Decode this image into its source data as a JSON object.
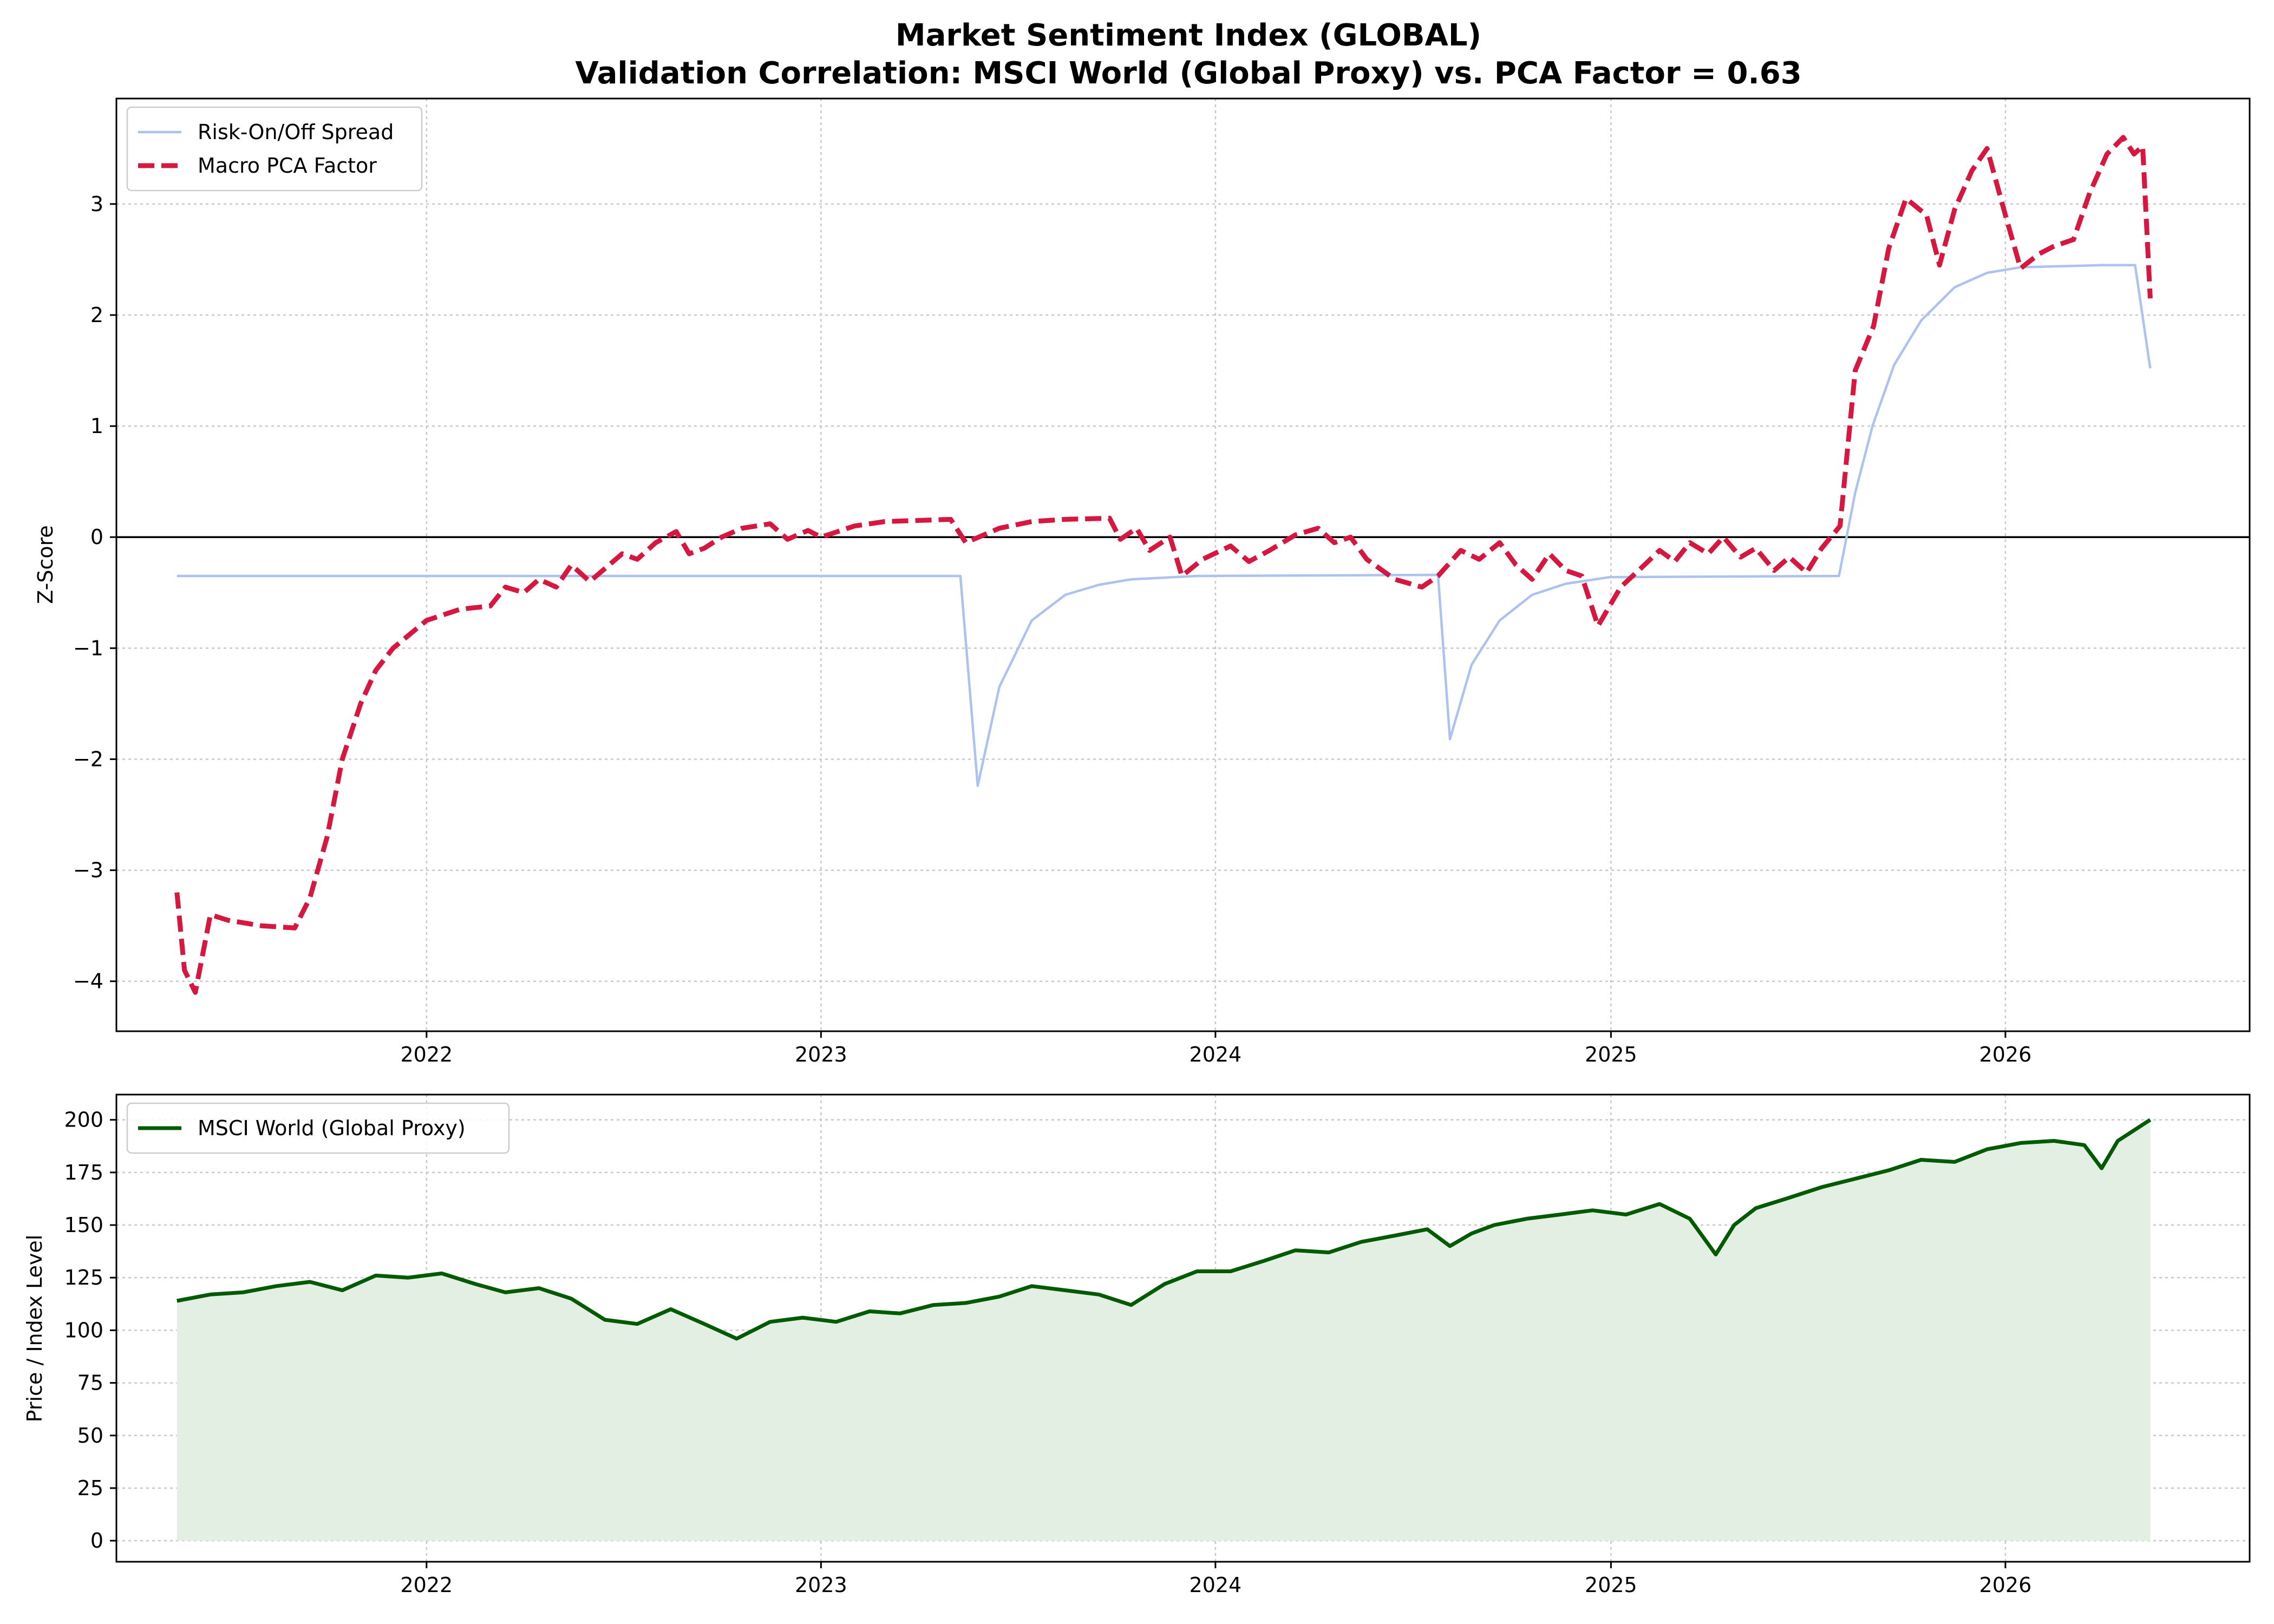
{
  "figure": {
    "title_line1": "Market Sentiment Index (GLOBAL)",
    "title_line2": "Validation Correlation: MSCI World (Global Proxy) vs. PCA Factor = 0.63"
  },
  "chart_data": [
    {
      "type": "line",
      "ylabel": "Z-Score",
      "xlabel": "",
      "x_axis": "date",
      "xlim": [
        "2021-03-20",
        "2026-08-15"
      ],
      "ylim": [
        -4.45,
        3.95
      ],
      "x_ticks": [
        "2022",
        "2023",
        "2024",
        "2025",
        "2026"
      ],
      "y_ticks": [
        -4,
        -3,
        -2,
        -1,
        0,
        1,
        2,
        3
      ],
      "y_tick_labels": [
        "−4",
        "−3",
        "−2",
        "−1",
        "0",
        "1",
        "2",
        "3"
      ],
      "zero_line": true,
      "grid": true,
      "legend": "upper left",
      "series": [
        {
          "name": "Risk-On/Off Spread",
          "color": "#aec2f0",
          "style": "solid",
          "points": [
            [
              "2021-05-15",
              -0.35
            ],
            [
              "2023-05-10",
              -0.35
            ],
            [
              "2023-05-26",
              -2.24
            ],
            [
              "2023-06-15",
              -1.35
            ],
            [
              "2023-07-15",
              -0.75
            ],
            [
              "2023-08-15",
              -0.52
            ],
            [
              "2023-09-15",
              -0.43
            ],
            [
              "2023-10-15",
              -0.38
            ],
            [
              "2023-12-15",
              -0.35
            ],
            [
              "2024-07-25",
              -0.34
            ],
            [
              "2024-08-05",
              -1.82
            ],
            [
              "2024-08-25",
              -1.15
            ],
            [
              "2024-09-20",
              -0.75
            ],
            [
              "2024-10-20",
              -0.52
            ],
            [
              "2024-11-20",
              -0.42
            ],
            [
              "2024-12-31",
              -0.36
            ],
            [
              "2025-07-31",
              -0.35
            ],
            [
              "2025-08-15",
              0.4
            ],
            [
              "2025-08-31",
              1.0
            ],
            [
              "2025-09-20",
              1.55
            ],
            [
              "2025-10-15",
              1.95
            ],
            [
              "2025-11-15",
              2.25
            ],
            [
              "2025-12-15",
              2.38
            ],
            [
              "2026-01-15",
              2.43
            ],
            [
              "2026-04-01",
              2.45
            ],
            [
              "2026-05-01",
              2.45
            ],
            [
              "2026-05-15",
              1.52
            ]
          ]
        },
        {
          "name": "Macro PCA Factor",
          "color": "#d6173f",
          "style": "dashed",
          "points": [
            [
              "2021-05-15",
              -3.2
            ],
            [
              "2021-05-22",
              -3.9
            ],
            [
              "2021-06-01",
              -4.1
            ],
            [
              "2021-06-15",
              -3.4
            ],
            [
              "2021-07-01",
              -3.45
            ],
            [
              "2021-08-01",
              -3.5
            ],
            [
              "2021-09-01",
              -3.52
            ],
            [
              "2021-09-15",
              -3.25
            ],
            [
              "2021-10-01",
              -2.7
            ],
            [
              "2021-10-15",
              -2.0
            ],
            [
              "2021-11-01",
              -1.5
            ],
            [
              "2021-11-15",
              -1.2
            ],
            [
              "2021-12-01",
              -1.0
            ],
            [
              "2022-01-01",
              -0.75
            ],
            [
              "2022-02-01",
              -0.65
            ],
            [
              "2022-03-01",
              -0.62
            ],
            [
              "2022-03-15",
              -0.45
            ],
            [
              "2022-04-01",
              -0.5
            ],
            [
              "2022-04-15",
              -0.38
            ],
            [
              "2022-05-01",
              -0.45
            ],
            [
              "2022-05-15",
              -0.25
            ],
            [
              "2022-06-01",
              -0.4
            ],
            [
              "2022-07-01",
              -0.15
            ],
            [
              "2022-07-15",
              -0.2
            ],
            [
              "2022-08-01",
              -0.05
            ],
            [
              "2022-08-20",
              0.05
            ],
            [
              "2022-09-01",
              -0.15
            ],
            [
              "2022-09-15",
              -0.1
            ],
            [
              "2022-10-01",
              0.0
            ],
            [
              "2022-10-20",
              0.08
            ],
            [
              "2022-11-15",
              0.12
            ],
            [
              "2022-12-01",
              -0.02
            ],
            [
              "2022-12-20",
              0.06
            ],
            [
              "2023-01-01",
              0.0
            ],
            [
              "2023-02-01",
              0.1
            ],
            [
              "2023-03-01",
              0.14
            ],
            [
              "2023-05-01",
              0.16
            ],
            [
              "2023-05-15",
              -0.05
            ],
            [
              "2023-06-15",
              0.08
            ],
            [
              "2023-07-15",
              0.14
            ],
            [
              "2023-08-15",
              0.16
            ],
            [
              "2023-09-25",
              0.17
            ],
            [
              "2023-10-05",
              -0.02
            ],
            [
              "2023-10-20",
              0.08
            ],
            [
              "2023-11-01",
              -0.12
            ],
            [
              "2023-11-20",
              0.0
            ],
            [
              "2023-12-01",
              -0.35
            ],
            [
              "2023-12-20",
              -0.2
            ],
            [
              "2024-01-15",
              -0.08
            ],
            [
              "2024-02-01",
              -0.22
            ],
            [
              "2024-02-20",
              -0.12
            ],
            [
              "2024-03-15",
              0.02
            ],
            [
              "2024-04-05",
              0.08
            ],
            [
              "2024-04-20",
              -0.05
            ],
            [
              "2024-05-05",
              0.0
            ],
            [
              "2024-05-20",
              -0.2
            ],
            [
              "2024-06-15",
              -0.38
            ],
            [
              "2024-07-10",
              -0.45
            ],
            [
              "2024-07-25",
              -0.35
            ],
            [
              "2024-08-15",
              -0.12
            ],
            [
              "2024-09-01",
              -0.2
            ],
            [
              "2024-09-20",
              -0.05
            ],
            [
              "2024-10-05",
              -0.25
            ],
            [
              "2024-10-20",
              -0.38
            ],
            [
              "2024-11-05",
              -0.15
            ],
            [
              "2024-11-20",
              -0.3
            ],
            [
              "2024-12-05",
              -0.35
            ],
            [
              "2024-12-20",
              -0.8
            ],
            [
              "2025-01-10",
              -0.45
            ],
            [
              "2025-02-01",
              -0.25
            ],
            [
              "2025-02-15",
              -0.12
            ],
            [
              "2025-03-01",
              -0.22
            ],
            [
              "2025-03-15",
              -0.05
            ],
            [
              "2025-04-01",
              -0.15
            ],
            [
              "2025-04-15",
              0.0
            ],
            [
              "2025-05-01",
              -0.18
            ],
            [
              "2025-05-15",
              -0.1
            ],
            [
              "2025-06-01",
              -0.3
            ],
            [
              "2025-06-15",
              -0.18
            ],
            [
              "2025-07-01",
              -0.32
            ],
            [
              "2025-07-15",
              -0.1
            ],
            [
              "2025-08-01",
              0.1
            ],
            [
              "2025-08-15",
              1.5
            ],
            [
              "2025-09-01",
              1.9
            ],
            [
              "2025-09-15",
              2.6
            ],
            [
              "2025-10-01",
              3.05
            ],
            [
              "2025-10-20",
              2.9
            ],
            [
              "2025-11-01",
              2.45
            ],
            [
              "2025-11-15",
              2.95
            ],
            [
              "2025-12-01",
              3.3
            ],
            [
              "2025-12-15",
              3.5
            ],
            [
              "2026-01-01",
              2.9
            ],
            [
              "2026-01-15",
              2.42
            ],
            [
              "2026-02-01",
              2.55
            ],
            [
              "2026-02-15",
              2.62
            ],
            [
              "2026-03-05",
              2.68
            ],
            [
              "2026-03-20",
              3.1
            ],
            [
              "2026-04-05",
              3.45
            ],
            [
              "2026-04-20",
              3.6
            ],
            [
              "2026-04-30",
              3.45
            ],
            [
              "2026-05-08",
              3.52
            ],
            [
              "2026-05-15",
              2.15
            ]
          ]
        }
      ]
    },
    {
      "type": "area",
      "ylabel": "Price / Index Level",
      "xlabel": "",
      "x_axis": "date",
      "xlim": [
        "2021-03-20",
        "2026-08-15"
      ],
      "ylim": [
        -10,
        212
      ],
      "x_ticks": [
        "2022",
        "2023",
        "2024",
        "2025",
        "2026"
      ],
      "y_ticks": [
        0,
        25,
        50,
        75,
        100,
        125,
        150,
        175,
        200
      ],
      "y_tick_labels": [
        "0",
        "25",
        "50",
        "75",
        "100",
        "125",
        "150",
        "175",
        "200"
      ],
      "grid": true,
      "legend": "upper left",
      "series": [
        {
          "name": "MSCI World (Global Proxy)",
          "color": "#005a00",
          "fill_color": "#e3efe3",
          "points": [
            [
              "2021-05-15",
              114
            ],
            [
              "2021-06-15",
              117
            ],
            [
              "2021-07-15",
              118
            ],
            [
              "2021-08-15",
              121
            ],
            [
              "2021-09-15",
              123
            ],
            [
              "2021-10-15",
              119
            ],
            [
              "2021-11-15",
              126
            ],
            [
              "2021-12-15",
              125
            ],
            [
              "2022-01-15",
              127
            ],
            [
              "2022-02-15",
              122
            ],
            [
              "2022-03-15",
              118
            ],
            [
              "2022-04-15",
              120
            ],
            [
              "2022-05-15",
              115
            ],
            [
              "2022-06-15",
              105
            ],
            [
              "2022-07-15",
              103
            ],
            [
              "2022-08-15",
              110
            ],
            [
              "2022-09-15",
              103
            ],
            [
              "2022-10-15",
              96
            ],
            [
              "2022-11-15",
              104
            ],
            [
              "2022-12-15",
              106
            ],
            [
              "2023-01-15",
              104
            ],
            [
              "2023-02-15",
              109
            ],
            [
              "2023-03-15",
              108
            ],
            [
              "2023-04-15",
              112
            ],
            [
              "2023-05-15",
              113
            ],
            [
              "2023-06-15",
              116
            ],
            [
              "2023-07-15",
              121
            ],
            [
              "2023-08-15",
              119
            ],
            [
              "2023-09-15",
              117
            ],
            [
              "2023-10-15",
              112
            ],
            [
              "2023-11-15",
              122
            ],
            [
              "2023-12-15",
              128
            ],
            [
              "2024-01-15",
              128
            ],
            [
              "2024-02-15",
              133
            ],
            [
              "2024-03-15",
              138
            ],
            [
              "2024-04-15",
              137
            ],
            [
              "2024-05-15",
              142
            ],
            [
              "2024-06-15",
              145
            ],
            [
              "2024-07-15",
              148
            ],
            [
              "2024-08-05",
              140
            ],
            [
              "2024-08-25",
              146
            ],
            [
              "2024-09-15",
              150
            ],
            [
              "2024-10-15",
              153
            ],
            [
              "2024-11-15",
              155
            ],
            [
              "2024-12-15",
              157
            ],
            [
              "2025-01-15",
              155
            ],
            [
              "2025-02-15",
              160
            ],
            [
              "2025-03-15",
              153
            ],
            [
              "2025-04-08",
              136
            ],
            [
              "2025-04-25",
              150
            ],
            [
              "2025-05-15",
              158
            ],
            [
              "2025-06-15",
              163
            ],
            [
              "2025-07-15",
              168
            ],
            [
              "2025-08-15",
              172
            ],
            [
              "2025-09-15",
              176
            ],
            [
              "2025-10-15",
              181
            ],
            [
              "2025-11-15",
              180
            ],
            [
              "2025-12-15",
              186
            ],
            [
              "2026-01-15",
              189
            ],
            [
              "2026-02-15",
              190
            ],
            [
              "2026-03-15",
              188
            ],
            [
              "2026-03-31",
              177
            ],
            [
              "2026-04-15",
              190
            ],
            [
              "2026-04-30",
              195
            ],
            [
              "2026-05-15",
              200
            ]
          ]
        }
      ]
    }
  ]
}
